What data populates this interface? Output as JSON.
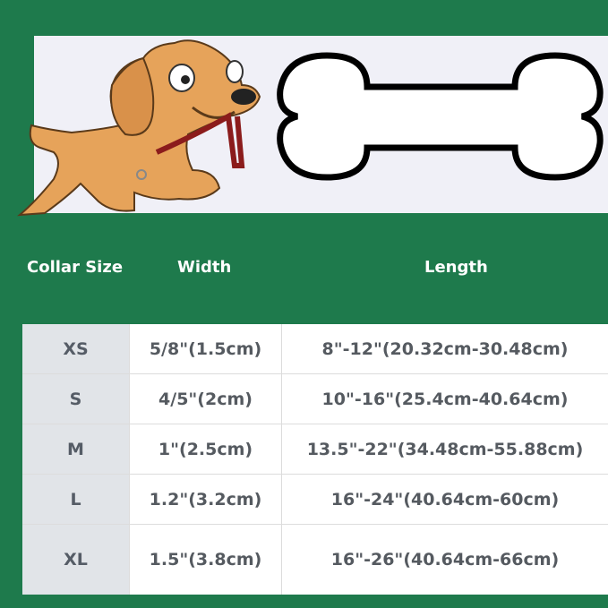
{
  "banner": {
    "illustration": "cartoon dog holding leash, dog bone outline"
  },
  "headers": [
    "Collar Size",
    "Width",
    "Length"
  ],
  "rows": [
    {
      "size": "XS",
      "width": "5/8\"(1.5cm)",
      "length": "8\"-12\"(20.32cm-30.48cm)"
    },
    {
      "size": "S",
      "width": "4/5\"(2cm)",
      "length": "10\"-16\"(25.4cm-40.64cm)"
    },
    {
      "size": "M",
      "width": "1\"(2.5cm)",
      "length": "13.5\"-22\"(34.48cm-55.88cm)"
    },
    {
      "size": "L",
      "width": "1.2\"(3.2cm)",
      "length": "16\"-24\"(40.64cm-60cm)"
    },
    {
      "size": "XL",
      "width": "1.5\"(3.8cm)",
      "length": "16\"-26\"(40.64cm-66cm)"
    }
  ],
  "colors": {
    "background": "#1e7a4c",
    "size_column": "#e1e4e8",
    "text": "#555a60"
  }
}
